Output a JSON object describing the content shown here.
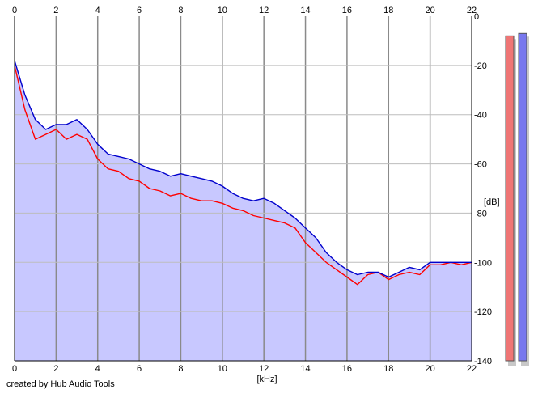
{
  "credit": "created by Hub Audio Tools",
  "chart_data": {
    "type": "line",
    "xlabel": "[kHz]",
    "ylabel": "[dB]",
    "xlim": [
      0,
      22
    ],
    "ylim": [
      -140,
      0
    ],
    "x_ticks": [
      0,
      2,
      4,
      6,
      8,
      10,
      12,
      14,
      16,
      18,
      20,
      22
    ],
    "y_ticks": [
      0,
      -20,
      -40,
      -60,
      -80,
      -100,
      -120,
      -140
    ],
    "grid": true,
    "area_fill_color": "#c8c8ff",
    "series": [
      {
        "color": "#ff0000",
        "x": [
          0,
          0.5,
          1,
          1.5,
          2,
          2.5,
          3,
          3.5,
          4,
          4.5,
          5,
          5.5,
          6,
          6.5,
          7,
          7.5,
          8,
          8.5,
          9,
          9.5,
          10,
          10.5,
          11,
          11.5,
          12,
          12.5,
          13,
          13.5,
          14,
          14.5,
          15,
          15.5,
          16,
          16.5,
          17,
          17.5,
          18,
          18.5,
          19,
          19.5,
          20,
          20.5,
          21,
          21.5,
          22
        ],
        "values": [
          -20,
          -38,
          -50,
          -48,
          -46,
          -50,
          -48,
          -50,
          -58,
          -62,
          -63,
          -66,
          -67,
          -70,
          -71,
          -73,
          -72,
          -74,
          -75,
          -75,
          -76,
          -78,
          -79,
          -81,
          -82,
          -83,
          -84,
          -86,
          -92,
          -96,
          -100,
          -103,
          -106,
          -109,
          -105,
          -104,
          -107,
          -105,
          -104,
          -105,
          -101,
          -101,
          -100,
          -101,
          -100
        ]
      },
      {
        "color": "#0000cc",
        "x": [
          0,
          0.5,
          1,
          1.5,
          2,
          2.5,
          3,
          3.5,
          4,
          4.5,
          5,
          5.5,
          6,
          6.5,
          7,
          7.5,
          8,
          8.5,
          9,
          9.5,
          10,
          10.5,
          11,
          11.5,
          12,
          12.5,
          13,
          13.5,
          14,
          14.5,
          15,
          15.5,
          16,
          16.5,
          17,
          17.5,
          18,
          18.5,
          19,
          19.5,
          20,
          20.5,
          21,
          21.5,
          22
        ],
        "values": [
          -18,
          -32,
          -42,
          -46,
          -44,
          -44,
          -42,
          -46,
          -52,
          -56,
          -57,
          -58,
          -60,
          -62,
          -63,
          -65,
          -64,
          -65,
          -66,
          -67,
          -69,
          -72,
          -74,
          -75,
          -74,
          -76,
          -79,
          -82,
          -86,
          -90,
          -96,
          -100,
          -103,
          -105,
          -104,
          -104,
          -106,
          -104,
          -102,
          -103,
          -100,
          -100,
          -100,
          -100,
          -100
        ]
      }
    ]
  },
  "meters": {
    "left_color": "#ef7575",
    "right_color": "#7878ee",
    "left_level_db": -8,
    "right_level_db": -7
  }
}
